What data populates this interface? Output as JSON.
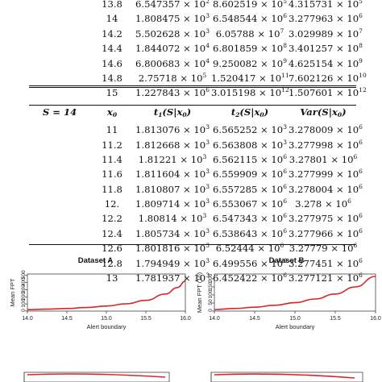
{
  "table": {
    "rows_a": [
      [
        "13.8",
        "6.547357 × 10",
        "2",
        "8.602519 × 10",
        "5",
        "4.315731 × 10",
        "5"
      ],
      [
        "14",
        "1.808475 × 10",
        "3",
        "6.548544 × 10",
        "6",
        "3.277963 × 10",
        "6"
      ],
      [
        "14.2",
        "5.502628 × 10",
        "3",
        "6.05788 × 10",
        "7",
        "3.029989 × 10",
        "7"
      ],
      [
        "14.4",
        "1.844072 × 10",
        "4",
        "6.801859 × 10",
        "8",
        "3.401257 × 10",
        "8"
      ],
      [
        "14.6",
        "6.800683 × 10",
        "4",
        "9.250082 × 10",
        "9",
        "4.625154 × 10",
        "9"
      ],
      [
        "14.8",
        "2.75718 × 10",
        "5",
        "1.520417 × 10",
        "11",
        "7.602126 × 10",
        "10"
      ],
      [
        "15",
        "1.227843 × 10",
        "6",
        "3.015198 × 10",
        "12",
        "1.507601 × 10",
        "12"
      ]
    ],
    "header": {
      "s_label": "S = 14",
      "x0": "x",
      "x0_sub": "0",
      "t1": "t",
      "t1_sub": "1",
      "t1_arg": "(S|x",
      "t1_arg_sub": "0",
      "t1_end": ")",
      "t2": "t",
      "t2_sub": "2",
      "t2_arg": "(S|x",
      "t2_arg_sub": "0",
      "t2_end": ")",
      "var": "Var",
      "var_arg": "(S|x",
      "var_arg_sub": "0",
      "var_end": ")"
    },
    "rows_b": [
      [
        "11",
        "1.813076 × 10",
        "3",
        "6.565252 × 10",
        "3",
        "3.278009 × 10",
        "6"
      ],
      [
        "11.2",
        "1.812668 × 10",
        "3",
        "6.563808 × 10",
        "3",
        "3.277998 × 10",
        "6"
      ],
      [
        "11.4",
        "1.81221 × 10",
        "3",
        "6.562115 × 10",
        "6",
        "3.27801 × 10",
        "6"
      ],
      [
        "11.6",
        "1.811604 × 10",
        "3",
        "6.559909 × 10",
        "6",
        "3.277999 × 10",
        "6"
      ],
      [
        "11.8",
        "1.810807 × 10",
        "3",
        "6.557285 × 10",
        "6",
        "3.278004 × 10",
        "6"
      ],
      [
        "12.",
        "1.809714 × 10",
        "3",
        "6.553067 × 10",
        "6",
        "3.278 × 10",
        "6"
      ],
      [
        "12.2",
        "1.80814 × 10",
        "3",
        "6.547343 × 10",
        "6",
        "3.277975 × 10",
        "6"
      ],
      [
        "12.4",
        "1.805734 × 10",
        "3",
        "6.538643 × 10",
        "6",
        "3.277966 × 10",
        "6"
      ],
      [
        "12.6",
        "1.801816 × 10",
        "3",
        "6.52444 × 10",
        "6",
        "3.27779 × 10",
        "6"
      ],
      [
        "12.8",
        "1.794949 × 10",
        "3",
        "6.499556 × 10",
        "6",
        "3.277451 × 10",
        "6"
      ],
      [
        "13",
        "1.781937 × 10",
        "3",
        "6.452422 × 10",
        "6",
        "3.277121 × 10",
        "6"
      ]
    ]
  },
  "chart_data": [
    {
      "type": "line",
      "title": "Dataset A",
      "xlabel": "Alert boundary",
      "ylabel": "Mean FPT",
      "xlim": [
        14.0,
        16.0
      ],
      "ylim": [
        0,
        520
      ],
      "xticks": [
        "14.0",
        "14.5",
        "15.0",
        "15.5",
        "16.0"
      ],
      "yticks": [
        "0",
        "100",
        "200",
        "300",
        "400",
        "500"
      ],
      "series": [
        {
          "color": "#d62728",
          "x": [
            14.0,
            14.25,
            14.5,
            14.75,
            15.0,
            15.25,
            15.5,
            15.75,
            15.9,
            16.0
          ],
          "y": [
            20,
            27,
            36,
            50,
            70,
            102,
            150,
            240,
            330,
            420
          ]
        }
      ]
    },
    {
      "type": "line",
      "title": "Dataset B",
      "xlabel": "Alert boundary",
      "ylabel": "Mean FPT (10)",
      "xlim": [
        14.0,
        16.0
      ],
      "ylim": [
        0,
        230
      ],
      "xticks": [
        "14.0",
        "14.5",
        "15.0",
        "15.5",
        "16.0"
      ],
      "yticks": [
        "0",
        "50",
        "100",
        "150",
        "200"
      ],
      "series": [
        {
          "color": "#d62728",
          "x": [
            14.0,
            14.25,
            14.5,
            14.75,
            15.0,
            15.25,
            15.5,
            15.75,
            16.0
          ],
          "y": [
            10,
            16,
            24,
            36,
            52,
            75,
            106,
            150,
            215
          ]
        }
      ]
    }
  ],
  "colors": {
    "curve": "#d62728",
    "axis": "#444444",
    "text": "#111111"
  }
}
